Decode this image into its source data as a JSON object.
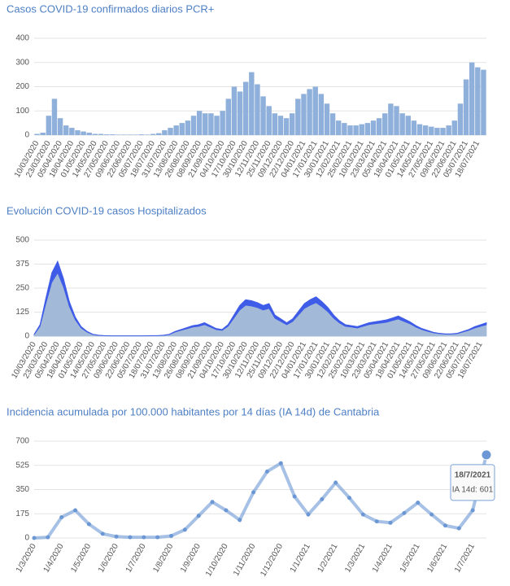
{
  "chart_data": [
    {
      "type": "bar",
      "title": "Casos COVID-19 confirmados diarios PCR+",
      "color": "#8fb0da",
      "categories": [
        "10/03/2020",
        null,
        "23/03/2020",
        null,
        "05/04/2020",
        null,
        "18/04/2020",
        null,
        "01/05/2020",
        null,
        "14/05/2020",
        null,
        "27/05/2020",
        null,
        "09/06/2020",
        null,
        "22/06/2020",
        null,
        "05/07/2020",
        null,
        "18/07/2020",
        null,
        "31/07/2020",
        null,
        "13/08/2020",
        null,
        "26/08/2020",
        null,
        "08/09/2020",
        null,
        "21/09/2020",
        null,
        "04/10/2020",
        null,
        "17/10/2020",
        null,
        "30/10/2020",
        null,
        "12/11/2020",
        null,
        "25/11/2020",
        null,
        "09/12/2020",
        null,
        "22/12/2020",
        null,
        "04/01/2021",
        null,
        "17/01/2021",
        null,
        "30/01/2021",
        null,
        "12/02/2021",
        null,
        "25/02/2021",
        null,
        "10/03/2021",
        null,
        "23/03/2021",
        null,
        "05/04/2021",
        null,
        "18/04/2021",
        null,
        "01/05/2021",
        null,
        "14/05/2021",
        null,
        "27/05/2021",
        null,
        "09/06/2021",
        null,
        "22/06/2021",
        null,
        "05/07/2021",
        null,
        "18/07/2021",
        null
      ],
      "values": [
        5,
        10,
        80,
        150,
        70,
        40,
        30,
        20,
        15,
        10,
        5,
        5,
        3,
        3,
        2,
        2,
        2,
        2,
        3,
        2,
        5,
        8,
        20,
        30,
        40,
        50,
        60,
        80,
        100,
        90,
        90,
        80,
        100,
        150,
        200,
        180,
        220,
        260,
        210,
        160,
        120,
        90,
        80,
        70,
        90,
        150,
        170,
        190,
        200,
        170,
        130,
        90,
        60,
        50,
        40,
        40,
        45,
        50,
        60,
        70,
        90,
        130,
        120,
        90,
        80,
        60,
        45,
        40,
        35,
        30,
        30,
        40,
        60,
        130,
        230,
        300,
        280,
        270
      ],
      "ylim": [
        0,
        400
      ],
      "yticks": [
        0,
        100,
        200,
        300,
        400
      ],
      "grid": true
    },
    {
      "type": "stacked_area",
      "title": "Evolución COVID-19 casos  Hospitalizados",
      "categories": [
        "10/03/2020",
        null,
        "23/03/2020",
        null,
        "05/04/2020",
        null,
        "18/04/2020",
        null,
        "01/05/2020",
        null,
        "14/05/2020",
        null,
        "27/05/2020",
        null,
        "09/06/2020",
        null,
        "22/06/2020",
        null,
        "05/07/2020",
        null,
        "18/07/2020",
        null,
        "31/07/2020",
        null,
        "13/08/2020",
        null,
        "26/08/2020",
        null,
        "08/09/2020",
        null,
        "21/09/2020",
        null,
        "04/10/2020",
        null,
        "17/10/2020",
        null,
        "30/10/2020",
        null,
        "12/11/2020",
        null,
        "25/11/2020",
        null,
        "09/12/2020",
        null,
        "22/12/2020",
        null,
        "04/01/2021",
        null,
        "17/01/2021",
        null,
        "30/01/2021",
        null,
        "12/02/2021",
        null,
        "25/02/2021",
        null,
        "10/03/2021",
        null,
        "23/03/2021",
        null,
        "05/04/2021",
        null,
        "18/04/2021",
        null,
        "01/05/2021",
        null,
        "14/05/2021",
        null,
        "27/05/2021",
        null,
        "09/06/2021",
        null,
        "22/06/2021",
        null,
        "05/07/2021",
        null,
        "18/07/2021",
        null
      ],
      "series": [
        {
          "color": "#a3b9d8",
          "values": [
            8,
            51,
            170,
            280,
            330,
            255,
            153,
            85,
            42,
            21,
            8,
            4,
            2,
            1,
            1,
            1,
            1,
            1,
            1,
            1,
            2,
            2,
            4,
            8,
            21,
            30,
            38,
            47,
            51,
            60,
            47,
            34,
            30,
            51,
            93,
            136,
            161,
            157,
            149,
            136,
            144,
            93,
            76,
            59,
            76,
            110,
            144,
            161,
            174,
            153,
            127,
            93,
            68,
            51,
            47,
            42,
            51,
            60,
            64,
            68,
            72,
            81,
            89,
            76,
            64,
            47,
            34,
            25,
            17,
            13,
            10,
            10,
            13,
            21,
            30,
            42,
            51,
            59
          ]
        },
        {
          "color": "#3f5ce8",
          "values": [
            2,
            9,
            30,
            50,
            60,
            45,
            27,
            15,
            8,
            4,
            2,
            1,
            1,
            1,
            1,
            1,
            1,
            1,
            1,
            1,
            1,
            1,
            1,
            2,
            4,
            5,
            7,
            8,
            9,
            10,
            8,
            6,
            5,
            9,
            17,
            24,
            29,
            28,
            26,
            24,
            26,
            17,
            14,
            11,
            14,
            20,
            26,
            29,
            31,
            27,
            23,
            17,
            12,
            9,
            8,
            8,
            9,
            10,
            11,
            12,
            13,
            14,
            16,
            14,
            11,
            8,
            6,
            5,
            3,
            2,
            2,
            2,
            2,
            4,
            5,
            8,
            9,
            11
          ]
        }
      ],
      "ylim": [
        0,
        500
      ],
      "yticks": [
        0,
        125,
        250,
        375,
        500
      ],
      "grid": true
    },
    {
      "type": "line",
      "title": "Incidencia acumulada por 100.000 habitantes por 14 días (IA 14d) de Cantabria",
      "color": "#6b97d4",
      "categories": [
        "1/3/2020",
        null,
        "1/4/2020",
        null,
        "1/5/2020",
        null,
        "1/6/2020",
        null,
        "1/7/2020",
        null,
        "1/8/2020",
        null,
        "1/9/2020",
        null,
        "1/10/2020",
        null,
        "1/11/2020",
        null,
        "1/12/2020",
        null,
        "1/1/2021",
        null,
        "1/2/2021",
        null,
        "1/3/2021",
        null,
        "1/4/2021",
        null,
        "1/5/2021",
        null,
        "1/6/2021",
        null,
        "1/7/2021",
        null
      ],
      "values": [
        0,
        5,
        150,
        200,
        100,
        30,
        10,
        5,
        5,
        5,
        15,
        60,
        160,
        260,
        200,
        130,
        330,
        480,
        540,
        300,
        170,
        280,
        400,
        290,
        170,
        120,
        110,
        180,
        255,
        170,
        90,
        70,
        200,
        601
      ],
      "ylim": [
        0,
        700
      ],
      "yticks": [
        0,
        175,
        350,
        525,
        700
      ],
      "grid": true,
      "tooltip": {
        "title": "18/7/2021",
        "text": "IA 14d: 601"
      }
    }
  ]
}
